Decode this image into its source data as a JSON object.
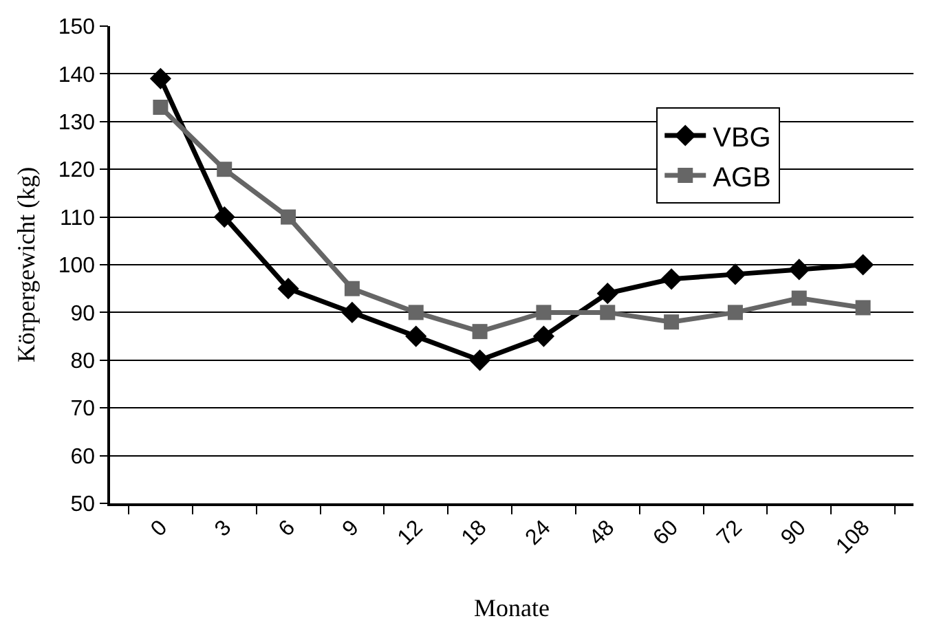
{
  "chart_data": {
    "type": "line",
    "xlabel": "Monate",
    "ylabel": "Körpergewicht (kg)",
    "categories": [
      "0",
      "3",
      "6",
      "9",
      "12",
      "18",
      "24",
      "48",
      "60",
      "72",
      "90",
      "108"
    ],
    "series": [
      {
        "name": "VBG",
        "color": "#000000",
        "marker": "diamond",
        "values": [
          139,
          110,
          95,
          90,
          85,
          80,
          85,
          94,
          97,
          98,
          99,
          100
        ]
      },
      {
        "name": "AGB",
        "color": "#666666",
        "marker": "square",
        "values": [
          133,
          120,
          110,
          95,
          90,
          86,
          90,
          90,
          88,
          90,
          93,
          91
        ]
      }
    ],
    "ylim": [
      50,
      150
    ],
    "yticks": [
      50,
      60,
      70,
      80,
      90,
      100,
      110,
      120,
      130,
      140,
      150
    ],
    "grid": "y",
    "legend": "top right"
  }
}
